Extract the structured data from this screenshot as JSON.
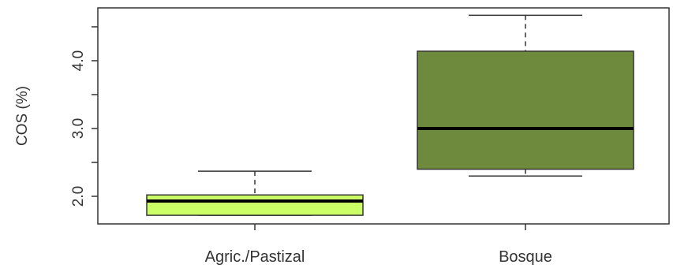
{
  "chart_data": {
    "type": "boxplot",
    "title": "",
    "xlabel": "",
    "ylabel": "COS (%)",
    "ylim": [
      1.6,
      4.85
    ],
    "yticks": [
      1.5,
      2.0,
      2.5,
      3.0,
      3.5,
      4.0,
      4.5
    ],
    "ytick_labels": [
      "",
      "2.0",
      "",
      "3.0",
      "",
      "4.0",
      ""
    ],
    "grid": false,
    "categories": [
      "Agric./Pastizal",
      "Bosque"
    ],
    "boxes": [
      {
        "category": "Agric./Pastizal",
        "min": 1.72,
        "q1": 1.72,
        "median": 1.93,
        "q3": 2.02,
        "max": 2.37,
        "color": "#ccff66"
      },
      {
        "category": "Bosque",
        "min": 2.3,
        "q1": 2.4,
        "median": 3.0,
        "q3": 4.14,
        "max": 4.67,
        "color": "#6e8b3d"
      }
    ]
  }
}
